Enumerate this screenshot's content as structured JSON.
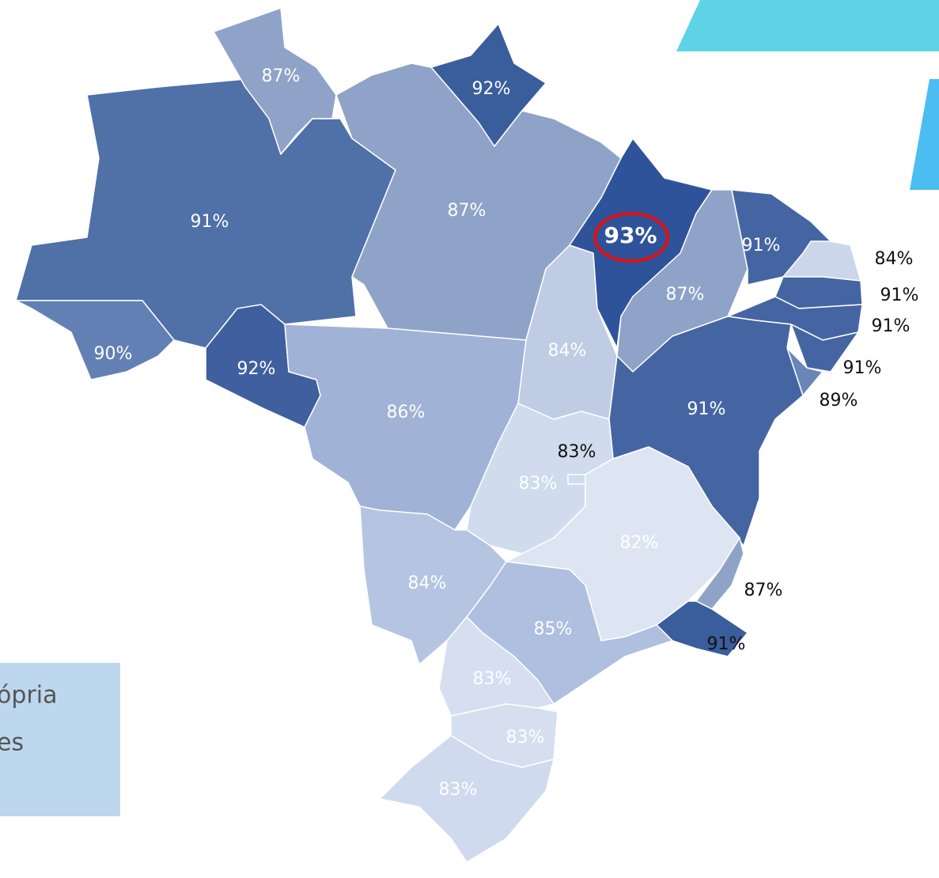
{
  "regions": [
    {
      "label": "87%"
    },
    {
      "label": "92%"
    },
    {
      "label": "91%"
    },
    {
      "label": "87%"
    },
    {
      "label": "93%"
    },
    {
      "label": "91%"
    },
    {
      "label": "87%"
    },
    {
      "label": "84%"
    },
    {
      "label": "91%"
    },
    {
      "label": "91%"
    },
    {
      "label": "91%"
    },
    {
      "label": "89%"
    },
    {
      "label": "90%"
    },
    {
      "label": "92%"
    },
    {
      "label": "84%"
    },
    {
      "label": "86%"
    },
    {
      "label": "91%"
    },
    {
      "label": "83%"
    },
    {
      "label": "83%"
    },
    {
      "label": "82%"
    },
    {
      "label": "84%"
    },
    {
      "label": "87%"
    },
    {
      "label": "85%"
    },
    {
      "label": "91%"
    },
    {
      "label": "83%"
    },
    {
      "label": "83%"
    },
    {
      "label": "83%"
    }
  ],
  "note": {
    "lines": [
      "ópria",
      "es"
    ]
  }
}
